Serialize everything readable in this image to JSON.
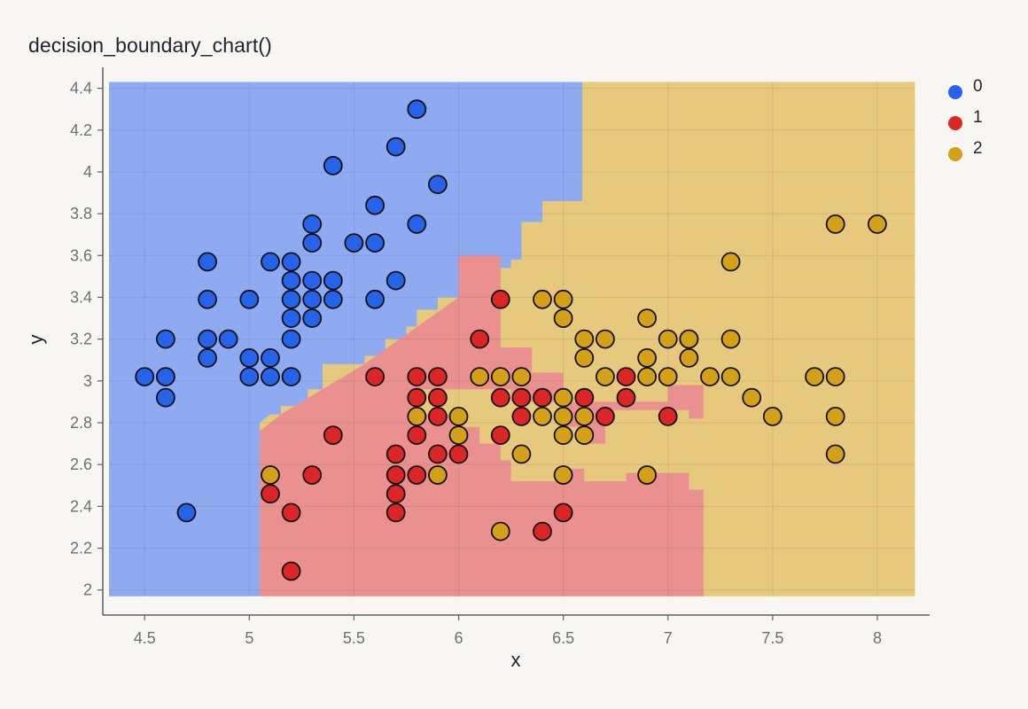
{
  "chart_data": {
    "type": "scatter",
    "title": "decision_boundary_chart()",
    "xlabel": "x",
    "ylabel": "y",
    "xlim": [
      4.3,
      8.25
    ],
    "ylim": [
      1.88,
      4.5
    ],
    "x_ticks": [
      4.5,
      5,
      5.5,
      6,
      6.5,
      7,
      7.5,
      8
    ],
    "x_tick_labels": [
      "4.5",
      "5",
      "5.5",
      "6",
      "6.5",
      "7",
      "7.5",
      "8"
    ],
    "y_ticks": [
      2,
      2.2,
      2.4,
      2.6,
      2.8,
      3,
      3.2,
      3.4,
      3.6,
      3.8,
      4,
      4.2,
      4.4
    ],
    "y_tick_labels": [
      "2",
      "2.2",
      "2.4",
      "2.6",
      "2.8",
      "3",
      "3.2",
      "3.4",
      "3.6",
      "3.8",
      "4",
      "4.2",
      "4.4"
    ],
    "grid": true,
    "legend_position": "top-right",
    "colors": {
      "class_0": "#2563eb",
      "class_1": "#dc2626",
      "class_2": "#d4a017",
      "region_0": "#8eaaf0",
      "region_1": "#eb9091",
      "region_2": "#e6c97d",
      "background": "#f8f6f2"
    },
    "decision_regions": {
      "x_range": [
        4.33,
        8.18
      ],
      "y_range": [
        1.97,
        4.43
      ],
      "class_0_upper_boundary": [
        [
          4.33,
          4.43
        ],
        [
          6.59,
          4.43
        ],
        [
          6.59,
          3.86
        ],
        [
          6.4,
          3.86
        ],
        [
          6.4,
          3.76
        ],
        [
          6.3,
          3.76
        ],
        [
          6.3,
          3.58
        ],
        [
          6.25,
          3.58
        ],
        [
          6.25,
          3.54
        ],
        [
          6.0,
          3.54
        ],
        [
          6.0,
          3.4
        ],
        [
          5.9,
          3.4
        ],
        [
          5.9,
          3.34
        ],
        [
          5.8,
          3.34
        ],
        [
          5.8,
          3.26
        ],
        [
          5.75,
          3.26
        ],
        [
          5.75,
          3.2
        ],
        [
          5.65,
          3.2
        ],
        [
          5.65,
          3.12
        ],
        [
          5.55,
          3.12
        ],
        [
          5.55,
          3.08
        ],
        [
          5.35,
          3.08
        ],
        [
          5.35,
          2.96
        ],
        [
          5.28,
          2.96
        ],
        [
          5.28,
          2.88
        ],
        [
          5.15,
          2.88
        ],
        [
          5.15,
          2.84
        ],
        [
          5.1,
          2.84
        ],
        [
          5.05,
          2.8
        ],
        [
          5.05,
          1.97
        ],
        [
          4.33,
          1.97
        ]
      ],
      "class_1_region": [
        [
          5.05,
          2.76
        ],
        [
          5.05,
          1.97
        ],
        [
          7.17,
          1.97
        ],
        [
          7.17,
          2.48
        ],
        [
          7.1,
          2.48
        ],
        [
          7.1,
          2.56
        ],
        [
          6.8,
          2.56
        ],
        [
          6.8,
          2.52
        ],
        [
          6.6,
          2.52
        ],
        [
          6.6,
          2.58
        ],
        [
          6.5,
          2.58
        ],
        [
          6.5,
          2.52
        ],
        [
          6.25,
          2.52
        ],
        [
          6.25,
          2.62
        ],
        [
          6.2,
          2.62
        ],
        [
          6.2,
          2.7
        ],
        [
          6.1,
          2.7
        ],
        [
          6.1,
          2.78
        ],
        [
          6.0,
          2.78
        ],
        [
          6.0,
          2.84
        ],
        [
          5.8,
          2.84
        ],
        [
          5.8,
          2.96
        ],
        [
          6.25,
          2.96
        ],
        [
          6.25,
          2.9
        ],
        [
          7.0,
          2.9
        ],
        [
          7.0,
          2.98
        ],
        [
          7.17,
          2.98
        ],
        [
          7.17,
          2.82
        ],
        [
          7.1,
          2.82
        ],
        [
          7.1,
          2.86
        ],
        [
          6.7,
          2.86
        ],
        [
          6.7,
          2.7
        ],
        [
          6.6,
          2.7
        ],
        [
          6.6,
          2.78
        ],
        [
          6.5,
          2.78
        ],
        [
          6.5,
          3.04
        ],
        [
          6.35,
          3.04
        ],
        [
          6.35,
          3.16
        ],
        [
          6.2,
          3.16
        ],
        [
          6.2,
          3.6
        ],
        [
          6.0,
          3.6
        ],
        [
          6.0,
          3.4
        ],
        [
          5.55,
          3.08
        ],
        [
          5.35,
          2.96
        ],
        [
          5.15,
          2.84
        ],
        [
          5.05,
          2.76
        ]
      ]
    },
    "series": [
      {
        "name": "0",
        "points": [
          [
            4.5,
            3.02
          ],
          [
            4.6,
            3.2
          ],
          [
            4.6,
            3.02
          ],
          [
            4.6,
            2.92
          ],
          [
            4.7,
            2.37
          ],
          [
            4.8,
            3.57
          ],
          [
            4.8,
            3.39
          ],
          [
            4.8,
            3.2
          ],
          [
            4.8,
            3.11
          ],
          [
            4.9,
            3.2
          ],
          [
            5.0,
            3.39
          ],
          [
            5.0,
            3.11
          ],
          [
            5.0,
            3.02
          ],
          [
            5.1,
            3.57
          ],
          [
            5.1,
            3.11
          ],
          [
            5.1,
            3.02
          ],
          [
            5.2,
            3.57
          ],
          [
            5.2,
            3.48
          ],
          [
            5.2,
            3.39
          ],
          [
            5.2,
            3.3
          ],
          [
            5.2,
            3.2
          ],
          [
            5.2,
            3.02
          ],
          [
            5.3,
            3.75
          ],
          [
            5.3,
            3.66
          ],
          [
            5.3,
            3.48
          ],
          [
            5.3,
            3.39
          ],
          [
            5.3,
            3.3
          ],
          [
            5.4,
            4.03
          ],
          [
            5.4,
            3.48
          ],
          [
            5.4,
            3.39
          ],
          [
            5.5,
            3.66
          ],
          [
            5.6,
            3.84
          ],
          [
            5.6,
            3.66
          ],
          [
            5.6,
            3.39
          ],
          [
            5.7,
            4.12
          ],
          [
            5.7,
            3.48
          ],
          [
            5.8,
            4.3
          ],
          [
            5.8,
            3.75
          ],
          [
            5.9,
            3.94
          ]
        ]
      },
      {
        "name": "1",
        "points": [
          [
            5.1,
            2.46
          ],
          [
            5.2,
            2.37
          ],
          [
            5.2,
            2.09
          ],
          [
            5.3,
            2.55
          ],
          [
            5.4,
            2.74
          ],
          [
            5.6,
            3.02
          ],
          [
            5.7,
            2.65
          ],
          [
            5.7,
            2.55
          ],
          [
            5.7,
            2.46
          ],
          [
            5.7,
            2.37
          ],
          [
            5.8,
            3.02
          ],
          [
            5.8,
            2.92
          ],
          [
            5.8,
            2.74
          ],
          [
            5.8,
            2.55
          ],
          [
            5.9,
            3.02
          ],
          [
            5.9,
            2.92
          ],
          [
            5.9,
            2.83
          ],
          [
            5.9,
            2.65
          ],
          [
            6.0,
            2.65
          ],
          [
            6.1,
            3.2
          ],
          [
            6.2,
            3.39
          ],
          [
            6.2,
            2.92
          ],
          [
            6.2,
            2.74
          ],
          [
            6.3,
            2.92
          ],
          [
            6.3,
            2.83
          ],
          [
            6.4,
            2.92
          ],
          [
            6.4,
            2.28
          ],
          [
            6.5,
            2.37
          ],
          [
            6.6,
            2.92
          ],
          [
            6.7,
            2.83
          ],
          [
            6.8,
            3.02
          ],
          [
            6.8,
            2.92
          ],
          [
            7.0,
            2.83
          ],
          [
            7.1,
            3.2
          ]
        ]
      },
      {
        "name": "2",
        "points": [
          [
            5.1,
            2.55
          ],
          [
            5.8,
            2.83
          ],
          [
            5.9,
            2.55
          ],
          [
            6.0,
            2.83
          ],
          [
            6.0,
            2.74
          ],
          [
            6.1,
            3.02
          ],
          [
            6.2,
            3.02
          ],
          [
            6.2,
            2.28
          ],
          [
            6.3,
            3.02
          ],
          [
            6.3,
            2.65
          ],
          [
            6.4,
            3.39
          ],
          [
            6.4,
            2.83
          ],
          [
            6.5,
            3.39
          ],
          [
            6.5,
            3.3
          ],
          [
            6.5,
            2.92
          ],
          [
            6.5,
            2.83
          ],
          [
            6.5,
            2.74
          ],
          [
            6.5,
            2.55
          ],
          [
            6.6,
            3.2
          ],
          [
            6.6,
            3.11
          ],
          [
            6.6,
            2.83
          ],
          [
            6.6,
            2.74
          ],
          [
            6.7,
            3.2
          ],
          [
            6.7,
            3.02
          ],
          [
            6.9,
            3.3
          ],
          [
            6.9,
            3.11
          ],
          [
            6.9,
            3.02
          ],
          [
            6.9,
            2.55
          ],
          [
            7.0,
            3.2
          ],
          [
            7.0,
            3.02
          ],
          [
            7.1,
            3.2
          ],
          [
            7.1,
            3.11
          ],
          [
            7.2,
            3.02
          ],
          [
            7.3,
            3.57
          ],
          [
            7.3,
            3.2
          ],
          [
            7.3,
            3.02
          ],
          [
            7.4,
            2.92
          ],
          [
            7.5,
            2.83
          ],
          [
            7.7,
            3.02
          ],
          [
            7.8,
            3.75
          ],
          [
            7.8,
            3.02
          ],
          [
            7.8,
            2.83
          ],
          [
            7.8,
            2.65
          ],
          [
            8.0,
            3.75
          ]
        ]
      }
    ]
  }
}
